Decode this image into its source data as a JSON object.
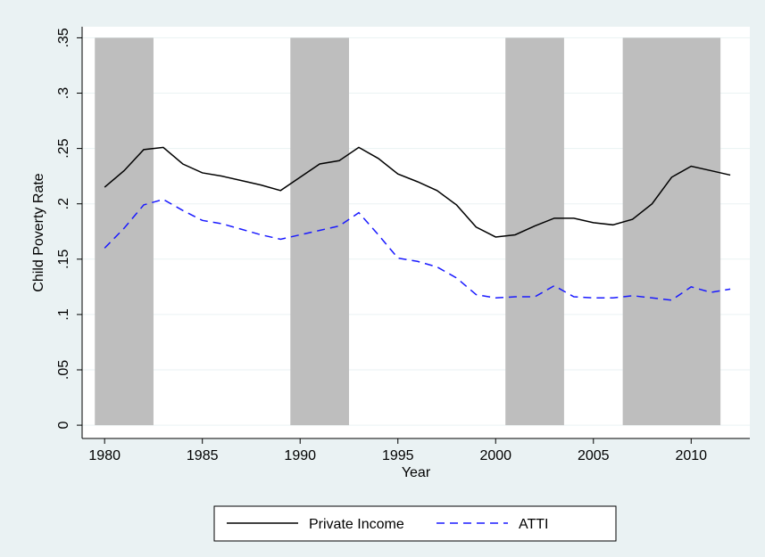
{
  "chart_data": {
    "type": "line",
    "y_label": "Child Poverty Rate",
    "x_label": "Year",
    "x": [
      1980,
      1981,
      1982,
      1983,
      1984,
      1985,
      1986,
      1987,
      1988,
      1989,
      1990,
      1991,
      1992,
      1993,
      1994,
      1995,
      1996,
      1997,
      1998,
      1999,
      2000,
      2001,
      2002,
      2003,
      2004,
      2005,
      2006,
      2007,
      2008,
      2009,
      2010,
      2011,
      2012
    ],
    "series": [
      {
        "name": "Private Income",
        "color": "#000000",
        "dash": "solid",
        "values": [
          0.215,
          0.23,
          0.249,
          0.251,
          0.236,
          0.228,
          0.225,
          0.221,
          0.217,
          0.212,
          0.224,
          0.236,
          0.239,
          0.251,
          0.241,
          0.227,
          0.22,
          0.212,
          0.199,
          0.179,
          0.17,
          0.172,
          0.18,
          0.187,
          0.187,
          0.183,
          0.181,
          0.186,
          0.2,
          0.224,
          0.234,
          0.23,
          0.226
        ]
      },
      {
        "name": "ATTI",
        "color": "#1a1aff",
        "dash": "dashed",
        "values": [
          0.16,
          0.178,
          0.199,
          0.204,
          0.194,
          0.185,
          0.182,
          0.177,
          0.172,
          0.168,
          0.172,
          0.176,
          0.18,
          0.192,
          0.172,
          0.151,
          0.148,
          0.143,
          0.133,
          0.118,
          0.115,
          0.116,
          0.116,
          0.126,
          0.116,
          0.115,
          0.115,
          0.117,
          0.115,
          0.113,
          0.125,
          0.12,
          0.123
        ]
      }
    ],
    "shaded_regions": [
      [
        1979.5,
        1982.5
      ],
      [
        1989.5,
        1992.5
      ],
      [
        2000.5,
        2003.5
      ],
      [
        2006.5,
        2011.5
      ]
    ],
    "shade_color": "#bebebe",
    "shade_yrange": [
      0,
      0.35
    ],
    "xlim": [
      1978.85,
      2013.0
    ],
    "ylim": [
      -0.012,
      0.36
    ],
    "xticks": [
      1980,
      1985,
      1990,
      1995,
      2000,
      2005,
      2010
    ],
    "yticks": [
      0,
      {
        "value": 0.05,
        "label": ".05"
      },
      {
        "value": 0.1,
        "label": ".1"
      },
      {
        "value": 0.15,
        "label": ".15"
      },
      {
        "value": 0.2,
        "label": ".2"
      },
      {
        "value": 0.25,
        "label": ".25"
      },
      {
        "value": 0.3,
        "label": ".3"
      },
      {
        "value": 0.35,
        "label": ".35"
      }
    ],
    "grid": true,
    "legend_position": "bottom"
  }
}
